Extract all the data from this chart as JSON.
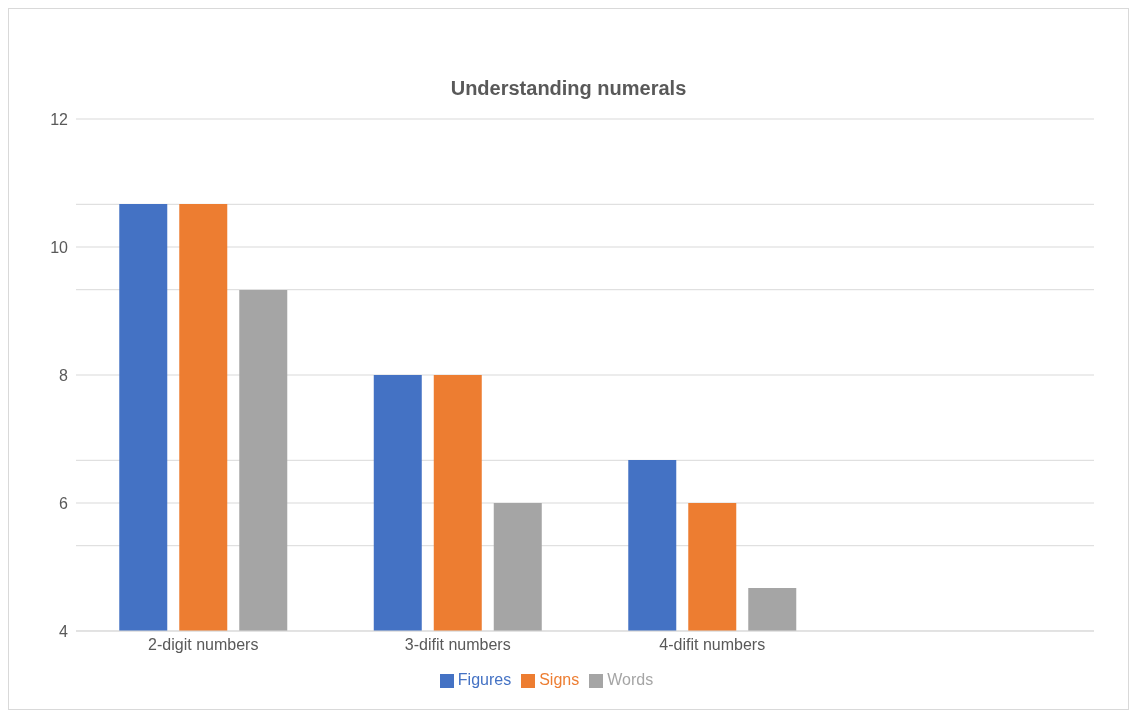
{
  "chart_data": {
    "type": "bar",
    "title": "Understanding numerals",
    "categories": [
      "2-digit numbers",
      "3-difit numbers",
      "4-difit numbers",
      null
    ],
    "series": [
      {
        "name": "Figures",
        "color": "#4472c4",
        "values": [
          10.67,
          8,
          6.67,
          null
        ]
      },
      {
        "name": "Signs",
        "color": "#ed7d31",
        "values": [
          10.67,
          8,
          6,
          null
        ]
      },
      {
        "name": "Words",
        "color": "#a5a5a5",
        "values": [
          9.33,
          6,
          4.67,
          null
        ]
      }
    ],
    "ylim": [
      4,
      12
    ],
    "yticks": [
      4,
      {
        "value": 5.333,
        "label": null
      },
      6,
      {
        "value": 6.667,
        "label": null
      },
      8,
      {
        "value": 9.333,
        "label": null
      },
      10,
      {
        "value": 10.667,
        "label": null
      },
      12
    ],
    "grid": "y",
    "legend": "bottom"
  }
}
